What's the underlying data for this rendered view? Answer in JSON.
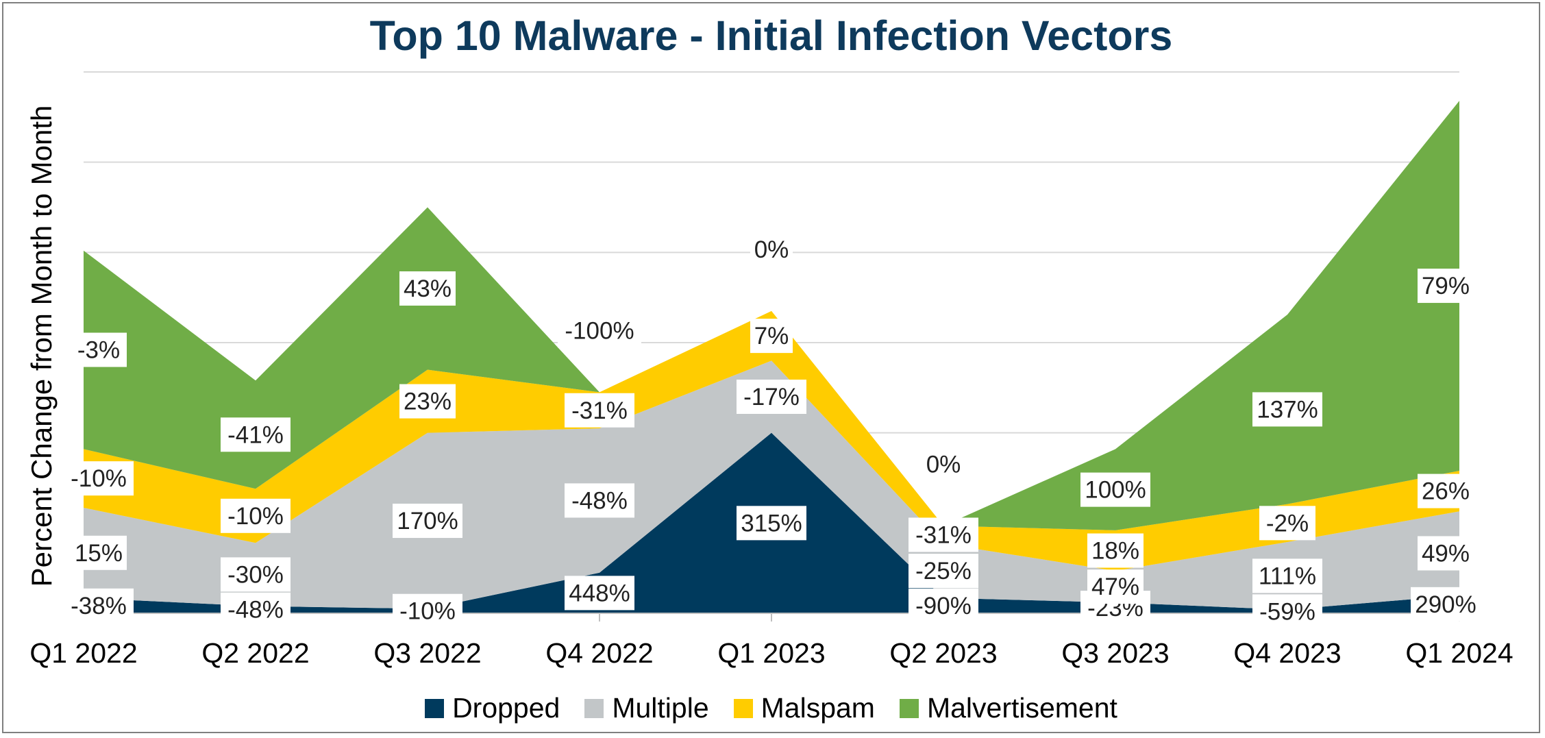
{
  "chart_data": {
    "type": "area",
    "stacked": true,
    "title": "Top 10 Malware - Initial Infection Vectors",
    "ylabel": "Percent Change from Month to Month",
    "xlabel": "",
    "categories": [
      "Q1 2022",
      "Q2 2022",
      "Q3 2022",
      "Q4 2022",
      "Q1 2023",
      "Q2 2023",
      "Q3 2023",
      "Q4 2023",
      "Q1 2024"
    ],
    "ylim": [
      0,
      6
    ],
    "grid": "horizontal",
    "legend": "bottom",
    "series": [
      {
        "name": "Dropped",
        "color": "#003a5d",
        "values": [
          0.17,
          0.08,
          0.05,
          0.45,
          2.0,
          0.17,
          0.12,
          0.04,
          0.2
        ],
        "labels": [
          "-38%",
          "-48%",
          "-10%",
          "448%",
          "315%",
          "-90%",
          "-23%",
          "-59%",
          "290%"
        ]
      },
      {
        "name": "Multiple",
        "color": "#c2c6c8",
        "values": [
          1.0,
          0.7,
          1.95,
          1.6,
          0.8,
          0.6,
          0.35,
          0.75,
          0.93
        ],
        "labels": [
          "15%",
          "-30%",
          "170%",
          "-48%",
          "-17%",
          "-25%",
          "47%",
          "111%",
          "49%"
        ]
      },
      {
        "name": "Malspam",
        "color": "#ffcc00",
        "values": [
          0.65,
          0.6,
          0.7,
          0.4,
          0.55,
          0.2,
          0.45,
          0.42,
          0.45
        ],
        "labels": [
          "-10%",
          "-10%",
          "23%",
          "-31%",
          "7%",
          "-31%",
          "18%",
          "-2%",
          "26%"
        ]
      },
      {
        "name": "Malvertisement",
        "color": "#70ad47",
        "values": [
          2.2,
          1.2,
          1.8,
          0.0,
          0.0,
          0.0,
          0.9,
          2.1,
          4.1
        ],
        "labels": [
          "-3%",
          "-41%",
          "43%",
          "-100%",
          "0%",
          "0%",
          "100%",
          "137%",
          "79%"
        ]
      }
    ]
  }
}
